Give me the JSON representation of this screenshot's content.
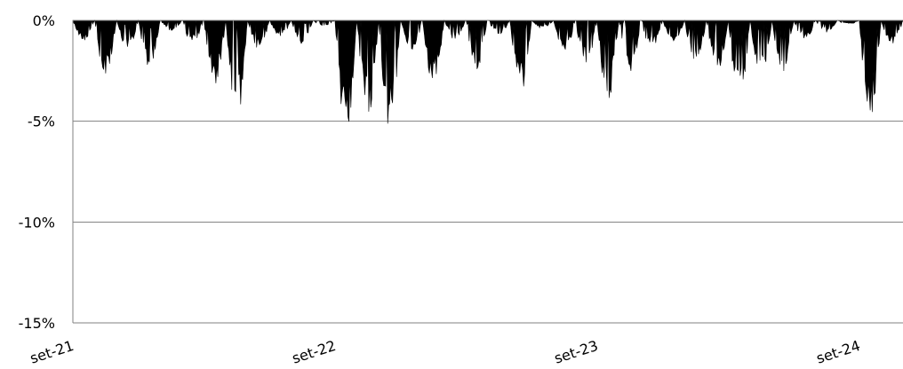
{
  "chart_data": {
    "type": "area",
    "title": "",
    "xlabel": "",
    "ylabel": "",
    "y_unit": "%",
    "ylim": [
      -15,
      0
    ],
    "yticks": [
      0,
      -5,
      -10,
      -15
    ],
    "ytick_labels": [
      "0%",
      "-5%",
      "-10%",
      "-15%"
    ],
    "xlim": [
      "2021-09",
      "2024-11"
    ],
    "xtick_labels": [
      "set-21",
      "set-22",
      "set-23",
      "set-24"
    ],
    "xtick_dates": [
      "2021-09",
      "2022-09",
      "2023-09",
      "2024-09"
    ],
    "grid": true,
    "legend": "none",
    "fill_color": "#000000",
    "gridline_color": "#808080",
    "series": [
      {
        "values_note_unused": null,
        "x": [
          "2021-09",
          "2021-10",
          "2021-11",
          "2021-12",
          "2022-01",
          "2022-02",
          "2022-03",
          "2022-04",
          "2022-05",
          "2022-06",
          "2022-07",
          "2022-08",
          "2022-09",
          "2022-10",
          "2022-11",
          "2022-12",
          "2023-01",
          "2023-02",
          "2023-03",
          "2023-04",
          "2023-05",
          "2023-06",
          "2023-07",
          "2023-08",
          "2023-09",
          "2023-10",
          "2023-11",
          "2023-12",
          "2024-01",
          "2024-02",
          "2024-03",
          "2024-04",
          "2024-05",
          "2024-06",
          "2024-07",
          "2024-08",
          "2024-09",
          "2024-10",
          "2024-11"
        ],
        "values": [
          -1.0,
          -2.8,
          -1.5,
          -2.3,
          -0.5,
          -1.2,
          -3.2,
          -5.0,
          -1.4,
          -0.8,
          -1.2,
          -0.3,
          -5.9,
          -4.8,
          -5.4,
          -1.5,
          -3.2,
          -1.0,
          -2.5,
          -0.7,
          -3.6,
          -0.4,
          -1.6,
          -2.2,
          -4.0,
          -2.6,
          -1.4,
          -1.1,
          -2.1,
          -2.6,
          -4.2,
          -3.0,
          -2.7,
          -1.0,
          -0.6,
          -0.2,
          -4.8,
          -1.2,
          -5.6
        ]
      }
    ]
  }
}
